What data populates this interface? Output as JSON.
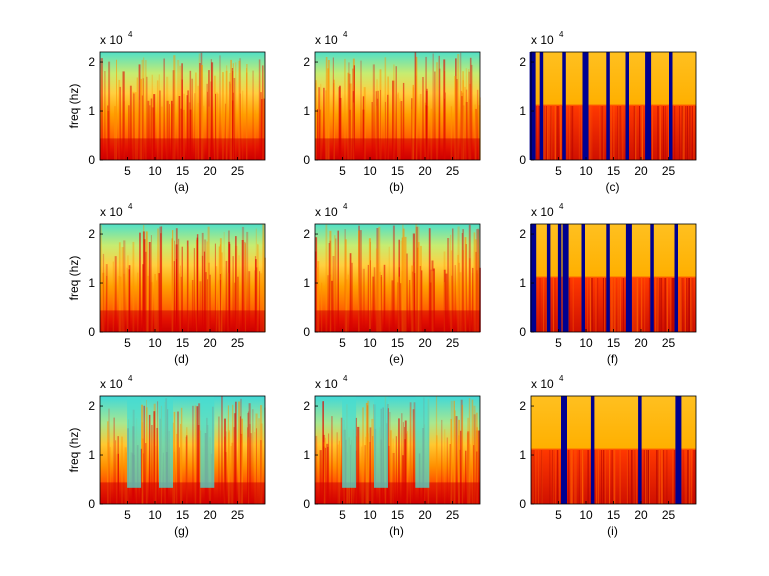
{
  "chart_data": [
    {
      "type": "heatmap",
      "label": "(a)",
      "ylabel": "freq (hz)",
      "y_scale_text": "x 10",
      "y_scale_exp": "4",
      "xticks": [
        "5",
        "10",
        "15",
        "20",
        "25"
      ],
      "yticks": [
        "0",
        "1",
        "2"
      ],
      "xlim": [
        0,
        30
      ],
      "ylim": [
        0,
        22050
      ],
      "style": "speech"
    },
    {
      "type": "heatmap",
      "label": "(b)",
      "ylabel": "",
      "y_scale_text": "x 10",
      "y_scale_exp": "4",
      "xticks": [
        "5",
        "10",
        "15",
        "20",
        "25"
      ],
      "yticks": [
        "0",
        "1",
        "2"
      ],
      "xlim": [
        0,
        30
      ],
      "ylim": [
        0,
        22050
      ],
      "style": "speech"
    },
    {
      "type": "heatmap",
      "label": "(c)",
      "ylabel": "",
      "y_scale_text": "x 10",
      "y_scale_exp": "4",
      "xticks": [
        "5",
        "10",
        "15",
        "20",
        "25"
      ],
      "yticks": [
        "0",
        "1",
        "2"
      ],
      "xlim": [
        0,
        30
      ],
      "ylim": [
        0,
        22050
      ],
      "style": "mask",
      "gaps_at": [
        0.3,
        1.9,
        6.0,
        9.9,
        14.0,
        17.5,
        21.3,
        25.4
      ]
    },
    {
      "type": "heatmap",
      "label": "(d)",
      "ylabel": "freq (hz)",
      "y_scale_text": "x 10",
      "y_scale_exp": "4",
      "xticks": [
        "5",
        "10",
        "15",
        "20",
        "25"
      ],
      "yticks": [
        "0",
        "1",
        "2"
      ],
      "xlim": [
        0,
        30
      ],
      "ylim": [
        0,
        22050
      ],
      "style": "speech"
    },
    {
      "type": "heatmap",
      "label": "(e)",
      "ylabel": "",
      "y_scale_text": "x 10",
      "y_scale_exp": "4",
      "xticks": [
        "5",
        "10",
        "15",
        "20",
        "25"
      ],
      "yticks": [
        "0",
        "1",
        "2"
      ],
      "xlim": [
        0,
        30
      ],
      "ylim": [
        0,
        22050
      ],
      "style": "speech"
    },
    {
      "type": "heatmap",
      "label": "(f)",
      "ylabel": "",
      "y_scale_text": "x 10",
      "y_scale_exp": "4",
      "xticks": [
        "5",
        "10",
        "15",
        "20",
        "25"
      ],
      "yticks": [
        "0",
        "1",
        "2"
      ],
      "xlim": [
        0,
        30
      ],
      "ylim": [
        0,
        22050
      ],
      "style": "mask",
      "gaps_at": [
        0.4,
        3.2,
        5.2,
        6.3,
        9.5,
        14.0,
        17.8,
        22.0,
        26.4
      ]
    },
    {
      "type": "heatmap",
      "label": "(g)",
      "ylabel": "freq (hz)",
      "y_scale_text": "x 10",
      "y_scale_exp": "4",
      "xticks": [
        "5",
        "10",
        "15",
        "20",
        "25"
      ],
      "yticks": [
        "0",
        "1",
        "2"
      ],
      "xlim": [
        0,
        30
      ],
      "ylim": [
        0,
        22050
      ],
      "style": "speech-gaps"
    },
    {
      "type": "heatmap",
      "label": "(h)",
      "ylabel": "",
      "y_scale_text": "x 10",
      "y_scale_exp": "4",
      "xticks": [
        "5",
        "10",
        "15",
        "20",
        "25"
      ],
      "yticks": [
        "0",
        "1",
        "2"
      ],
      "xlim": [
        0,
        30
      ],
      "ylim": [
        0,
        22050
      ],
      "style": "speech-gaps"
    },
    {
      "type": "heatmap",
      "label": "(i)",
      "ylabel": "",
      "y_scale_text": "x 10",
      "y_scale_exp": "4",
      "xticks": [
        "5",
        "10",
        "15",
        "20",
        "25"
      ],
      "yticks": [
        "0",
        "1",
        "2"
      ],
      "xlim": [
        0,
        30
      ],
      "ylim": [
        0,
        22050
      ],
      "style": "mask",
      "gaps_at": [
        6.0,
        11.2,
        19.8,
        26.8
      ]
    }
  ],
  "colors": {
    "dark_red": "#d00000",
    "red": "#ff2000",
    "orange": "#ff8000",
    "yellow": "#ffd000",
    "cyan": "#40e0d0",
    "navy": "#000090"
  }
}
